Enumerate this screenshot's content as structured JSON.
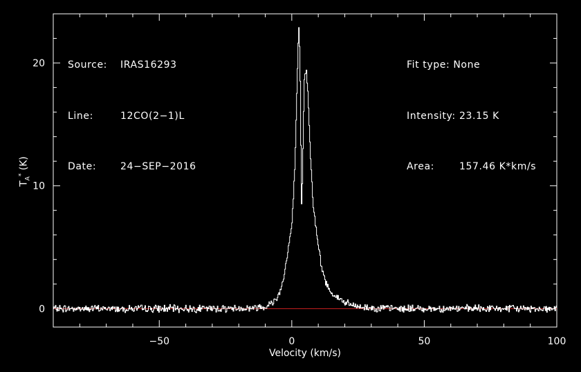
{
  "header_left": [
    {
      "label": "Source:",
      "value": "IRAS16293"
    },
    {
      "label": "Line:",
      "value": "12CO(2−1)L"
    },
    {
      "label": "Date:",
      "value": "24−SEP−2016"
    }
  ],
  "header_right": [
    {
      "label": "Fit type:",
      "value": "None"
    },
    {
      "label": "Intensity:",
      "value": "23.15 K"
    },
    {
      "label": "Area:",
      "value": "157.46 K*km/s"
    }
  ],
  "colors": {
    "background": "#000000",
    "axes": "#ffffff",
    "spectrum": "#ffffff",
    "baseline": "#d02020"
  },
  "chart_data": {
    "type": "line",
    "title": "",
    "xlabel": "Velocity (km/s)",
    "ylabel_main": "T",
    "ylabel_sub": "A",
    "ylabel_sup": "*",
    "ylabel_unit": "(K)",
    "xlim": [
      -90,
      100
    ],
    "ylim": [
      -1.5,
      24
    ],
    "xticks": [
      -50,
      0,
      50,
      100
    ],
    "xtick_labels": [
      "−50",
      "0",
      "50",
      "100"
    ],
    "yticks": [
      0,
      10,
      20
    ],
    "ytick_labels": [
      "0",
      "10",
      "20"
    ],
    "grid": false,
    "baseline": {
      "y": 0,
      "x_range": [
        -90,
        100
      ]
    },
    "series": [
      {
        "x": [
          -90,
          -60,
          -30,
          -15,
          -10,
          -8,
          -6,
          -5,
          -4,
          -3,
          -2,
          -1,
          0,
          0.5,
          1,
          1.5,
          2,
          2.5,
          3,
          3.3,
          3.6,
          4,
          4.3,
          4.6,
          5,
          5.5,
          6,
          6.5,
          7,
          8,
          9,
          10,
          11,
          12,
          13,
          14,
          15,
          17,
          20,
          22,
          25,
          30,
          40,
          60,
          100
        ],
        "y": [
          0,
          0,
          0,
          0.05,
          0.2,
          0.4,
          0.8,
          1.2,
          1.8,
          2.8,
          4.0,
          5.5,
          7.0,
          9.0,
          11.5,
          15.0,
          19.0,
          23.15,
          20.0,
          14.0,
          8.5,
          11.0,
          15.5,
          18.5,
          19.4,
          19.2,
          17.5,
          15.0,
          12.0,
          8.5,
          6.5,
          5.0,
          3.5,
          2.6,
          2.0,
          1.6,
          1.3,
          0.9,
          0.5,
          0.3,
          0.15,
          0.05,
          0,
          0,
          0
        ]
      }
    ]
  }
}
